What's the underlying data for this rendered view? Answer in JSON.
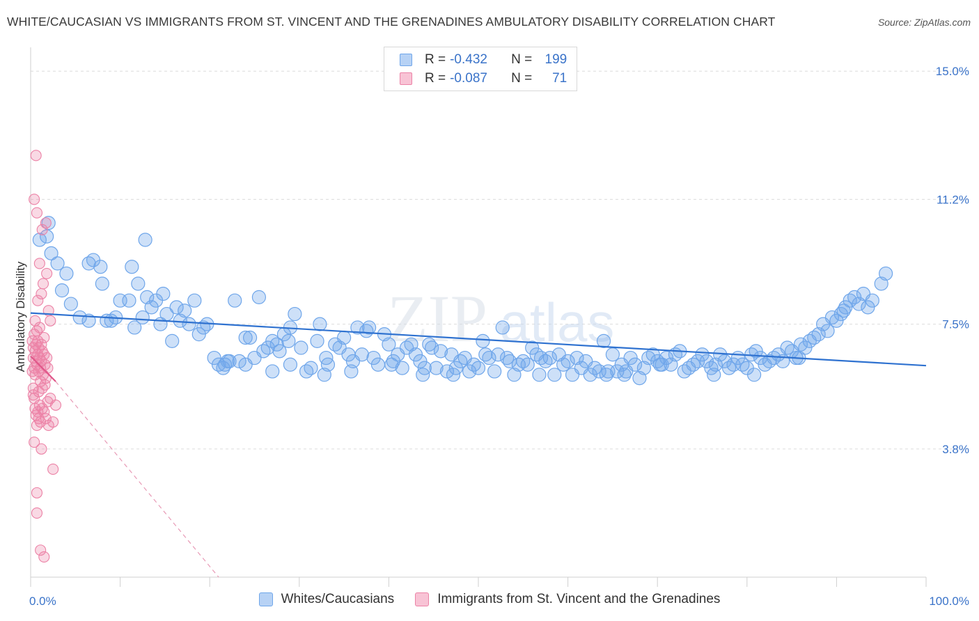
{
  "title": "WHITE/CAUCASIAN VS IMMIGRANTS FROM ST. VINCENT AND THE GRENADINES AMBULATORY DISABILITY CORRELATION CHART",
  "source": "Source: ZipAtlas.com",
  "watermark": {
    "zip": "ZIP",
    "atlas": "atlas"
  },
  "legend": {
    "rows": [
      {
        "r_label": "R =",
        "r_value": "-0.432",
        "n_label": "N =",
        "n_value": "199",
        "color": "#6fa6ea"
      },
      {
        "r_label": "R =",
        "r_value": "-0.087",
        "n_label": "N =",
        "n_value": "71",
        "color": "#ec82a6"
      }
    ]
  },
  "chart_data": {
    "type": "scatter",
    "ylabel": "Ambulatory Disability",
    "xlabel": "",
    "xlim": [
      0,
      100
    ],
    "ylim": [
      0,
      15.5
    ],
    "x_tick_labels": [
      "0.0%",
      "100.0%"
    ],
    "y_ticks": [
      {
        "value": 3.8,
        "label": "3.8%"
      },
      {
        "value": 7.5,
        "label": "7.5%"
      },
      {
        "value": 11.2,
        "label": "11.2%"
      },
      {
        "value": 15.0,
        "label": "15.0%"
      }
    ],
    "grid": true,
    "legend_position": "top-center",
    "series": [
      {
        "name": "Whites/Caucasians",
        "color": "#6fa6ea",
        "trend": {
          "x": [
            0,
            100
          ],
          "y": [
            7.83,
            6.27
          ],
          "style": "solid"
        },
        "points": [
          [
            1.0,
            10.0
          ],
          [
            1.8,
            10.1
          ],
          [
            2.0,
            10.5
          ],
          [
            2.3,
            9.6
          ],
          [
            3.0,
            9.3
          ],
          [
            3.5,
            8.5
          ],
          [
            4.0,
            9.0
          ],
          [
            4.5,
            8.1
          ],
          [
            5.5,
            7.7
          ],
          [
            6.5,
            9.3
          ],
          [
            6.5,
            7.6
          ],
          [
            7.0,
            9.4
          ],
          [
            7.8,
            9.2
          ],
          [
            8.0,
            8.7
          ],
          [
            8.5,
            7.6
          ],
          [
            9.0,
            7.6
          ],
          [
            9.5,
            7.7
          ],
          [
            10.0,
            8.2
          ],
          [
            11.0,
            8.2
          ],
          [
            11.3,
            9.2
          ],
          [
            11.6,
            7.4
          ],
          [
            12.0,
            8.7
          ],
          [
            12.5,
            7.7
          ],
          [
            12.8,
            10.0
          ],
          [
            13.0,
            8.3
          ],
          [
            13.5,
            8.0
          ],
          [
            14.0,
            8.2
          ],
          [
            14.5,
            7.5
          ],
          [
            14.8,
            8.4
          ],
          [
            15.2,
            7.8
          ],
          [
            15.8,
            7.0
          ],
          [
            16.3,
            8.0
          ],
          [
            16.7,
            7.6
          ],
          [
            17.2,
            7.9
          ],
          [
            17.7,
            7.5
          ],
          [
            18.3,
            8.2
          ],
          [
            18.8,
            7.2
          ],
          [
            19.3,
            7.4
          ],
          [
            19.7,
            7.5
          ],
          [
            20.5,
            6.5
          ],
          [
            21.0,
            6.3
          ],
          [
            21.5,
            6.2
          ],
          [
            22.2,
            6.4
          ],
          [
            22.8,
            8.2
          ],
          [
            23.3,
            6.4
          ],
          [
            24.0,
            7.1
          ],
          [
            24.5,
            7.1
          ],
          [
            25.0,
            6.5
          ],
          [
            25.5,
            8.3
          ],
          [
            26.0,
            6.7
          ],
          [
            26.5,
            6.8
          ],
          [
            27.0,
            7.0
          ],
          [
            27.5,
            6.9
          ],
          [
            27.8,
            6.7
          ],
          [
            28.3,
            7.2
          ],
          [
            28.8,
            7.0
          ],
          [
            29.0,
            7.4
          ],
          [
            29.5,
            7.8
          ],
          [
            30.2,
            6.8
          ],
          [
            30.8,
            6.1
          ],
          [
            31.3,
            6.2
          ],
          [
            32.0,
            7.0
          ],
          [
            32.3,
            7.5
          ],
          [
            32.8,
            6.0
          ],
          [
            33.2,
            6.3
          ],
          [
            34.0,
            6.9
          ],
          [
            34.5,
            6.8
          ],
          [
            35.0,
            7.1
          ],
          [
            35.5,
            6.6
          ],
          [
            36.0,
            6.4
          ],
          [
            36.5,
            7.4
          ],
          [
            37.0,
            6.6
          ],
          [
            37.5,
            7.3
          ],
          [
            37.8,
            7.4
          ],
          [
            38.3,
            6.5
          ],
          [
            38.8,
            6.3
          ],
          [
            39.5,
            7.2
          ],
          [
            40.0,
            6.9
          ],
          [
            40.5,
            6.4
          ],
          [
            41.0,
            6.6
          ],
          [
            41.5,
            6.2
          ],
          [
            42.0,
            6.8
          ],
          [
            42.5,
            6.9
          ],
          [
            43.0,
            6.6
          ],
          [
            43.5,
            6.4
          ],
          [
            44.0,
            6.2
          ],
          [
            44.5,
            6.9
          ],
          [
            44.8,
            6.8
          ],
          [
            45.3,
            6.2
          ],
          [
            45.8,
            6.7
          ],
          [
            46.5,
            6.1
          ],
          [
            47.0,
            6.6
          ],
          [
            47.5,
            6.2
          ],
          [
            48.0,
            6.4
          ],
          [
            48.5,
            6.5
          ],
          [
            49.0,
            6.1
          ],
          [
            49.5,
            6.3
          ],
          [
            50.0,
            6.2
          ],
          [
            50.5,
            7.0
          ],
          [
            50.8,
            6.6
          ],
          [
            51.2,
            6.5
          ],
          [
            51.8,
            6.1
          ],
          [
            52.2,
            6.6
          ],
          [
            52.7,
            7.4
          ],
          [
            53.2,
            6.5
          ],
          [
            53.5,
            6.4
          ],
          [
            54.0,
            6.0
          ],
          [
            54.5,
            6.3
          ],
          [
            55.0,
            6.4
          ],
          [
            55.5,
            6.3
          ],
          [
            56.0,
            6.8
          ],
          [
            56.5,
            6.6
          ],
          [
            57.0,
            6.5
          ],
          [
            57.5,
            6.4
          ],
          [
            58.0,
            6.5
          ],
          [
            58.5,
            6.0
          ],
          [
            59.0,
            6.6
          ],
          [
            59.5,
            6.3
          ],
          [
            60.0,
            6.4
          ],
          [
            60.5,
            6.0
          ],
          [
            61.0,
            6.5
          ],
          [
            61.5,
            6.2
          ],
          [
            62.0,
            6.4
          ],
          [
            62.5,
            6.0
          ],
          [
            63.0,
            6.2
          ],
          [
            63.5,
            6.1
          ],
          [
            64.0,
            7.0
          ],
          [
            64.5,
            6.1
          ],
          [
            65.0,
            6.6
          ],
          [
            65.5,
            6.1
          ],
          [
            66.0,
            6.3
          ],
          [
            66.5,
            6.1
          ],
          [
            67.0,
            6.5
          ],
          [
            67.5,
            6.3
          ],
          [
            68.0,
            5.9
          ],
          [
            68.5,
            6.2
          ],
          [
            69.0,
            6.5
          ],
          [
            69.5,
            6.6
          ],
          [
            70.0,
            6.4
          ],
          [
            70.5,
            6.3
          ],
          [
            71.0,
            6.5
          ],
          [
            71.5,
            6.3
          ],
          [
            72.0,
            6.6
          ],
          [
            72.5,
            6.7
          ],
          [
            73.0,
            6.1
          ],
          [
            73.5,
            6.2
          ],
          [
            74.0,
            6.3
          ],
          [
            74.5,
            6.4
          ],
          [
            75.0,
            6.6
          ],
          [
            75.5,
            6.4
          ],
          [
            76.0,
            6.2
          ],
          [
            76.5,
            6.3
          ],
          [
            77.0,
            6.6
          ],
          [
            77.5,
            6.4
          ],
          [
            78.0,
            6.2
          ],
          [
            78.5,
            6.3
          ],
          [
            79.0,
            6.5
          ],
          [
            79.5,
            6.3
          ],
          [
            80.0,
            6.2
          ],
          [
            80.5,
            6.6
          ],
          [
            81.0,
            6.7
          ],
          [
            81.5,
            6.5
          ],
          [
            82.0,
            6.3
          ],
          [
            82.5,
            6.4
          ],
          [
            83.0,
            6.5
          ],
          [
            83.5,
            6.6
          ],
          [
            84.0,
            6.4
          ],
          [
            84.5,
            6.8
          ],
          [
            85.0,
            6.7
          ],
          [
            85.5,
            6.5
          ],
          [
            86.0,
            6.9
          ],
          [
            86.5,
            6.8
          ],
          [
            87.0,
            7.0
          ],
          [
            87.5,
            7.1
          ],
          [
            88.0,
            7.2
          ],
          [
            88.5,
            7.5
          ],
          [
            89.0,
            7.3
          ],
          [
            89.5,
            7.7
          ],
          [
            90.0,
            7.6
          ],
          [
            90.5,
            7.8
          ],
          [
            91.0,
            8.0
          ],
          [
            91.5,
            8.2
          ],
          [
            92.0,
            8.3
          ],
          [
            92.5,
            8.1
          ],
          [
            93.0,
            8.4
          ],
          [
            93.5,
            8.0
          ],
          [
            94.0,
            8.2
          ],
          [
            95.0,
            8.7
          ],
          [
            95.5,
            9.0
          ],
          [
            85.8,
            6.5
          ],
          [
            80.8,
            6.0
          ],
          [
            76.3,
            6.0
          ],
          [
            70.3,
            6.3
          ],
          [
            66.3,
            6.0
          ],
          [
            64.3,
            6.0
          ],
          [
            56.8,
            6.0
          ],
          [
            47.2,
            6.0
          ],
          [
            43.8,
            6.0
          ],
          [
            40.3,
            6.3
          ],
          [
            35.8,
            6.1
          ],
          [
            33.0,
            6.5
          ],
          [
            29.0,
            6.3
          ],
          [
            27.0,
            6.1
          ],
          [
            24.0,
            6.3
          ],
          [
            22.0,
            6.4
          ],
          [
            21.7,
            6.3
          ],
          [
            90.8,
            7.9
          ]
        ]
      },
      {
        "name": "Immigrants from St. Vincent and the Grenadines",
        "color": "#ec82a6",
        "trend": {
          "x": [
            0,
            2.8
          ],
          "y": [
            6.55,
            5.8
          ],
          "style": "solid",
          "extended_to": [
            21.0,
            0.0
          ]
        },
        "points": [
          [
            0.2,
            7.0
          ],
          [
            0.3,
            6.8
          ],
          [
            0.3,
            6.5
          ],
          [
            0.4,
            6.2
          ],
          [
            0.4,
            7.2
          ],
          [
            0.5,
            6.0
          ],
          [
            0.5,
            6.7
          ],
          [
            0.6,
            6.4
          ],
          [
            0.6,
            6.9
          ],
          [
            0.7,
            7.3
          ],
          [
            0.7,
            6.3
          ],
          [
            0.8,
            6.6
          ],
          [
            0.8,
            7.0
          ],
          [
            0.9,
            6.1
          ],
          [
            0.9,
            6.8
          ],
          [
            1.0,
            6.5
          ],
          [
            1.0,
            7.4
          ],
          [
            1.1,
            6.2
          ],
          [
            1.1,
            5.8
          ],
          [
            1.2,
            6.9
          ],
          [
            1.2,
            6.4
          ],
          [
            1.3,
            6.7
          ],
          [
            1.3,
            5.6
          ],
          [
            1.4,
            6.0
          ],
          [
            1.5,
            6.6
          ],
          [
            1.5,
            7.1
          ],
          [
            1.6,
            6.3
          ],
          [
            1.7,
            5.9
          ],
          [
            1.8,
            6.5
          ],
          [
            1.9,
            6.2
          ],
          [
            0.3,
            5.6
          ],
          [
            0.4,
            5.3
          ],
          [
            0.5,
            5.0
          ],
          [
            0.6,
            4.8
          ],
          [
            0.7,
            4.5
          ],
          [
            0.8,
            4.9
          ],
          [
            0.9,
            4.7
          ],
          [
            1.0,
            5.1
          ],
          [
            1.1,
            4.6
          ],
          [
            1.3,
            5.0
          ],
          [
            1.5,
            4.9
          ],
          [
            1.7,
            4.7
          ],
          [
            1.9,
            5.2
          ],
          [
            2.0,
            4.5
          ],
          [
            2.2,
            5.3
          ],
          [
            2.5,
            4.6
          ],
          [
            2.8,
            5.1
          ],
          [
            0.6,
            12.5
          ],
          [
            0.4,
            11.2
          ],
          [
            0.7,
            10.8
          ],
          [
            1.3,
            10.3
          ],
          [
            1.7,
            10.5
          ],
          [
            1.0,
            9.3
          ],
          [
            1.4,
            8.7
          ],
          [
            1.8,
            9.0
          ],
          [
            0.8,
            8.2
          ],
          [
            2.0,
            7.9
          ],
          [
            2.2,
            7.6
          ],
          [
            0.5,
            7.6
          ],
          [
            1.2,
            8.4
          ],
          [
            1.2,
            3.8
          ],
          [
            2.5,
            3.2
          ],
          [
            0.7,
            2.5
          ],
          [
            0.7,
            1.9
          ],
          [
            1.1,
            0.8
          ],
          [
            1.5,
            0.6
          ],
          [
            0.4,
            4.0
          ],
          [
            1.6,
            5.7
          ],
          [
            0.9,
            5.5
          ],
          [
            0.2,
            6.1
          ],
          [
            0.3,
            5.4
          ]
        ]
      }
    ]
  }
}
